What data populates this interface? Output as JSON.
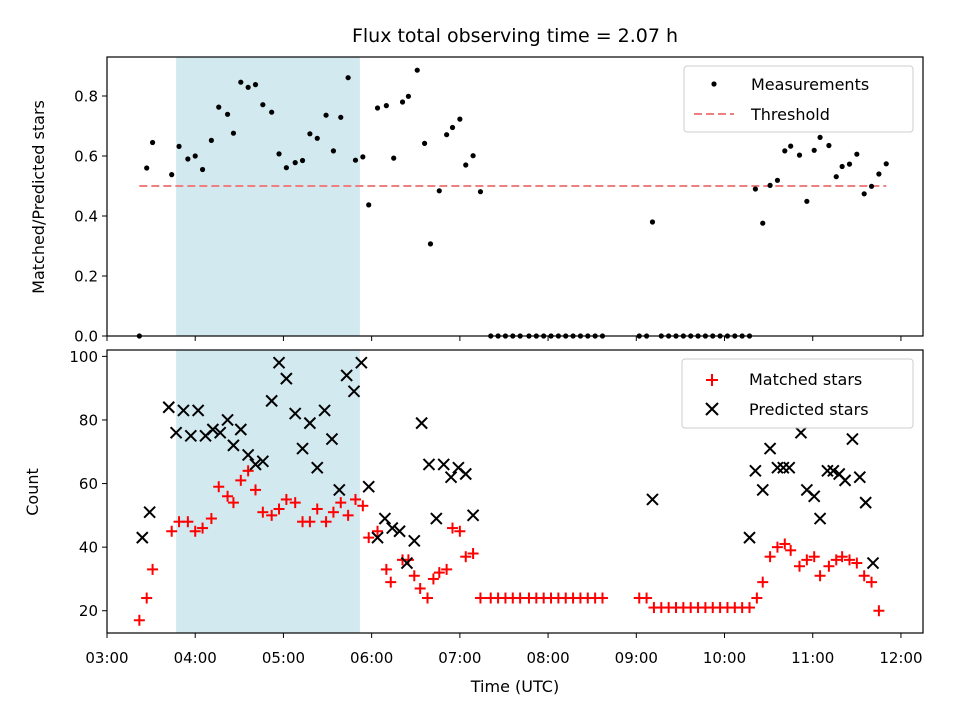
{
  "chart_data": [
    {
      "type": "scatter",
      "title": "Flux total observing time = 2.07 h",
      "xlabel": "",
      "ylabel": "Matched/Predicted stars",
      "xlim": [
        "03:00",
        "12:15"
      ],
      "ylim": [
        0,
        0.93
      ],
      "yticks": [
        "0.0",
        "0.2",
        "0.4",
        "0.6",
        "0.8"
      ],
      "legend_position": "top-right",
      "shaded_region": {
        "start": "03:47",
        "end": "05:52",
        "color": "#d2e9f0"
      },
      "series": [
        {
          "name": "Measurements",
          "marker": "dot",
          "color": "#000000",
          "points": [
            [
              "03:22",
              0.0
            ],
            [
              "03:27",
              0.56
            ],
            [
              "03:31",
              0.645
            ],
            [
              "03:44",
              0.538
            ],
            [
              "03:49",
              0.632
            ],
            [
              "03:55",
              0.59
            ],
            [
              "04:00",
              0.6
            ],
            [
              "04:05",
              0.555
            ],
            [
              "04:11",
              0.652
            ],
            [
              "04:16",
              0.763
            ],
            [
              "04:22",
              0.739
            ],
            [
              "04:26",
              0.676
            ],
            [
              "04:31",
              0.846
            ],
            [
              "04:36",
              0.829
            ],
            [
              "04:41",
              0.838
            ],
            [
              "04:46",
              0.771
            ],
            [
              "04:52",
              0.746
            ],
            [
              "04:57",
              0.607
            ],
            [
              "05:02",
              0.561
            ],
            [
              "05:08",
              0.578
            ],
            [
              "05:13",
              0.585
            ],
            [
              "05:18",
              0.674
            ],
            [
              "05:23",
              0.659
            ],
            [
              "05:29",
              0.736
            ],
            [
              "05:34",
              0.617
            ],
            [
              "05:39",
              0.729
            ],
            [
              "05:44",
              0.861
            ],
            [
              "05:49",
              0.586
            ],
            [
              "05:54",
              0.597
            ],
            [
              "05:58",
              0.437
            ],
            [
              "06:04",
              0.76
            ],
            [
              "06:10",
              0.768
            ],
            [
              "06:15",
              0.593
            ],
            [
              "06:21",
              0.78
            ],
            [
              "06:25",
              0.799
            ],
            [
              "06:31",
              0.886
            ],
            [
              "06:36",
              0.642
            ],
            [
              "06:40",
              0.307
            ],
            [
              "06:46",
              0.484
            ],
            [
              "06:51",
              0.671
            ],
            [
              "06:55",
              0.695
            ],
            [
              "07:00",
              0.723
            ],
            [
              "07:04",
              0.57
            ],
            [
              "07:09",
              0.601
            ],
            [
              "07:14",
              0.481
            ],
            [
              "07:21",
              0.0
            ],
            [
              "07:26",
              0.0
            ],
            [
              "07:31",
              0.0
            ],
            [
              "07:36",
              0.0
            ],
            [
              "07:41",
              0.0
            ],
            [
              "07:47",
              0.0
            ],
            [
              "07:52",
              0.0
            ],
            [
              "07:57",
              0.0
            ],
            [
              "08:02",
              0.0
            ],
            [
              "08:07",
              0.0
            ],
            [
              "08:12",
              0.0
            ],
            [
              "08:17",
              0.0
            ],
            [
              "08:22",
              0.0
            ],
            [
              "08:27",
              0.0
            ],
            [
              "08:32",
              0.0
            ],
            [
              "08:37",
              0.0
            ],
            [
              "09:02",
              0.0
            ],
            [
              "09:07",
              0.0
            ],
            [
              "09:11",
              0.38
            ],
            [
              "09:17",
              0.0
            ],
            [
              "09:22",
              0.0
            ],
            [
              "09:27",
              0.0
            ],
            [
              "09:32",
              0.0
            ],
            [
              "09:37",
              0.0
            ],
            [
              "09:42",
              0.0
            ],
            [
              "09:47",
              0.0
            ],
            [
              "09:52",
              0.0
            ],
            [
              "09:57",
              0.0
            ],
            [
              "10:02",
              0.0
            ],
            [
              "10:07",
              0.0
            ],
            [
              "10:12",
              0.0
            ],
            [
              "10:17",
              0.0
            ],
            [
              "10:21",
              0.49
            ],
            [
              "10:26",
              0.376
            ],
            [
              "10:31",
              0.502
            ],
            [
              "10:36",
              0.519
            ],
            [
              "10:41",
              0.617
            ],
            [
              "10:45",
              0.633
            ],
            [
              "10:51",
              0.603
            ],
            [
              "10:56",
              0.449
            ],
            [
              "11:01",
              0.619
            ],
            [
              "11:05",
              0.662
            ],
            [
              "11:11",
              0.635
            ],
            [
              "11:16",
              0.531
            ],
            [
              "11:20",
              0.565
            ],
            [
              "11:25",
              0.573
            ],
            [
              "11:30",
              0.606
            ],
            [
              "11:35",
              0.474
            ],
            [
              "11:40",
              0.499
            ],
            [
              "11:45",
              0.54
            ],
            [
              "11:50",
              0.574
            ]
          ]
        },
        {
          "name": "Threshold",
          "marker": "dashed-line",
          "color": "#f08080",
          "points": [
            [
              "03:22",
              0.5
            ],
            [
              "11:50",
              0.5
            ]
          ]
        }
      ]
    },
    {
      "type": "scatter",
      "title": "",
      "xlabel": "Time (UTC)",
      "ylabel": "Count",
      "xlim": [
        "03:00",
        "12:15"
      ],
      "ylim": [
        13,
        102
      ],
      "yticks": [
        "20",
        "40",
        "60",
        "80",
        "100"
      ],
      "xticks": [
        "03:00",
        "04:00",
        "05:00",
        "06:00",
        "07:00",
        "08:00",
        "09:00",
        "10:00",
        "11:00",
        "12:00"
      ],
      "legend_position": "top-right",
      "shaded_region": {
        "start": "03:47",
        "end": "05:52",
        "color": "#d2e9f0"
      },
      "series": [
        {
          "name": "Matched stars",
          "marker": "plus",
          "color": "#ff0000",
          "points": [
            [
              "03:22",
              17
            ],
            [
              "03:27",
              24
            ],
            [
              "03:31",
              33
            ],
            [
              "03:44",
              45
            ],
            [
              "03:49",
              48
            ],
            [
              "03:55",
              48
            ],
            [
              "04:00",
              45
            ],
            [
              "04:05",
              46
            ],
            [
              "04:11",
              49
            ],
            [
              "04:16",
              59
            ],
            [
              "04:22",
              56
            ],
            [
              "04:26",
              54
            ],
            [
              "04:31",
              61
            ],
            [
              "04:36",
              64
            ],
            [
              "04:41",
              58
            ],
            [
              "04:46",
              51
            ],
            [
              "04:52",
              50
            ],
            [
              "04:57",
              52
            ],
            [
              "05:02",
              55
            ],
            [
              "05:08",
              54
            ],
            [
              "05:13",
              48
            ],
            [
              "05:18",
              48
            ],
            [
              "05:23",
              52
            ],
            [
              "05:29",
              48
            ],
            [
              "05:34",
              51
            ],
            [
              "05:39",
              54
            ],
            [
              "05:44",
              50
            ],
            [
              "05:49",
              55
            ],
            [
              "05:54",
              53
            ],
            [
              "05:58",
              43
            ],
            [
              "06:04",
              45
            ],
            [
              "06:10",
              33
            ],
            [
              "06:13",
              29
            ],
            [
              "06:21",
              36
            ],
            [
              "06:25",
              36
            ],
            [
              "06:29",
              31
            ],
            [
              "06:33",
              27
            ],
            [
              "06:38",
              24
            ],
            [
              "06:42",
              30
            ],
            [
              "06:46",
              32
            ],
            [
              "06:51",
              33
            ],
            [
              "06:55",
              46
            ],
            [
              "07:00",
              45
            ],
            [
              "07:04",
              37
            ],
            [
              "07:09",
              38
            ],
            [
              "07:14",
              24
            ],
            [
              "07:21",
              24
            ],
            [
              "07:26",
              24
            ],
            [
              "07:31",
              24
            ],
            [
              "07:36",
              24
            ],
            [
              "07:41",
              24
            ],
            [
              "07:47",
              24
            ],
            [
              "07:52",
              24
            ],
            [
              "07:57",
              24
            ],
            [
              "08:02",
              24
            ],
            [
              "08:07",
              24
            ],
            [
              "08:12",
              24
            ],
            [
              "08:17",
              24
            ],
            [
              "08:22",
              24
            ],
            [
              "08:27",
              24
            ],
            [
              "08:32",
              24
            ],
            [
              "08:37",
              24
            ],
            [
              "09:02",
              24
            ],
            [
              "09:07",
              24
            ],
            [
              "09:12",
              21
            ],
            [
              "09:17",
              21
            ],
            [
              "09:22",
              21
            ],
            [
              "09:27",
              21
            ],
            [
              "09:32",
              21
            ],
            [
              "09:37",
              21
            ],
            [
              "09:42",
              21
            ],
            [
              "09:47",
              21
            ],
            [
              "09:52",
              21
            ],
            [
              "09:57",
              21
            ],
            [
              "10:02",
              21
            ],
            [
              "10:07",
              21
            ],
            [
              "10:12",
              21
            ],
            [
              "10:17",
              21
            ],
            [
              "10:22",
              24
            ],
            [
              "10:26",
              29
            ],
            [
              "10:31",
              37
            ],
            [
              "10:36",
              40
            ],
            [
              "10:41",
              41
            ],
            [
              "10:45",
              39
            ],
            [
              "10:51",
              34
            ],
            [
              "10:56",
              36
            ],
            [
              "11:01",
              37
            ],
            [
              "11:05",
              31
            ],
            [
              "11:11",
              34
            ],
            [
              "11:16",
              36
            ],
            [
              "11:20",
              37
            ],
            [
              "11:25",
              36
            ],
            [
              "11:30",
              35
            ],
            [
              "11:35",
              31
            ],
            [
              "11:40",
              29
            ],
            [
              "11:45",
              20
            ]
          ]
        },
        {
          "name": "Predicted stars",
          "marker": "x",
          "color": "#000000",
          "points": [
            [
              "03:24",
              43
            ],
            [
              "03:29",
              51
            ],
            [
              "03:42",
              84
            ],
            [
              "03:47",
              76
            ],
            [
              "03:52",
              83
            ],
            [
              "03:57",
              75
            ],
            [
              "04:02",
              83
            ],
            [
              "04:07",
              75
            ],
            [
              "04:12",
              77
            ],
            [
              "04:17",
              76
            ],
            [
              "04:22",
              80
            ],
            [
              "04:26",
              72
            ],
            [
              "04:31",
              77
            ],
            [
              "04:36",
              69
            ],
            [
              "04:41",
              66
            ],
            [
              "04:46",
              67
            ],
            [
              "04:52",
              86
            ],
            [
              "04:57",
              98
            ],
            [
              "05:02",
              93
            ],
            [
              "05:08",
              82
            ],
            [
              "05:13",
              71
            ],
            [
              "05:18",
              79
            ],
            [
              "05:23",
              65
            ],
            [
              "05:28",
              83
            ],
            [
              "05:33",
              74
            ],
            [
              "05:38",
              58
            ],
            [
              "05:43",
              94
            ],
            [
              "05:48",
              89
            ],
            [
              "05:53",
              98
            ],
            [
              "05:58",
              59
            ],
            [
              "06:04",
              43
            ],
            [
              "06:09",
              49
            ],
            [
              "06:14",
              46
            ],
            [
              "06:19",
              45
            ],
            [
              "06:24",
              35
            ],
            [
              "06:29",
              42
            ],
            [
              "06:34",
              79
            ],
            [
              "06:39",
              66
            ],
            [
              "06:44",
              49
            ],
            [
              "06:49",
              66
            ],
            [
              "06:54",
              62
            ],
            [
              "06:59",
              65
            ],
            [
              "07:04",
              63
            ],
            [
              "07:09",
              50
            ],
            [
              "09:11",
              55
            ],
            [
              "10:17",
              43
            ],
            [
              "10:21",
              64
            ],
            [
              "10:26",
              58
            ],
            [
              "10:31",
              71
            ],
            [
              "10:36",
              65
            ],
            [
              "10:40",
              65
            ],
            [
              "10:44",
              65
            ],
            [
              "10:52",
              76
            ],
            [
              "10:56",
              58
            ],
            [
              "11:01",
              56
            ],
            [
              "11:05",
              49
            ],
            [
              "11:10",
              64
            ],
            [
              "11:14",
              64
            ],
            [
              "11:18",
              63
            ],
            [
              "11:22",
              61
            ],
            [
              "11:27",
              74
            ],
            [
              "11:32",
              62
            ],
            [
              "11:36",
              54
            ],
            [
              "11:41",
              35
            ]
          ]
        }
      ]
    }
  ]
}
